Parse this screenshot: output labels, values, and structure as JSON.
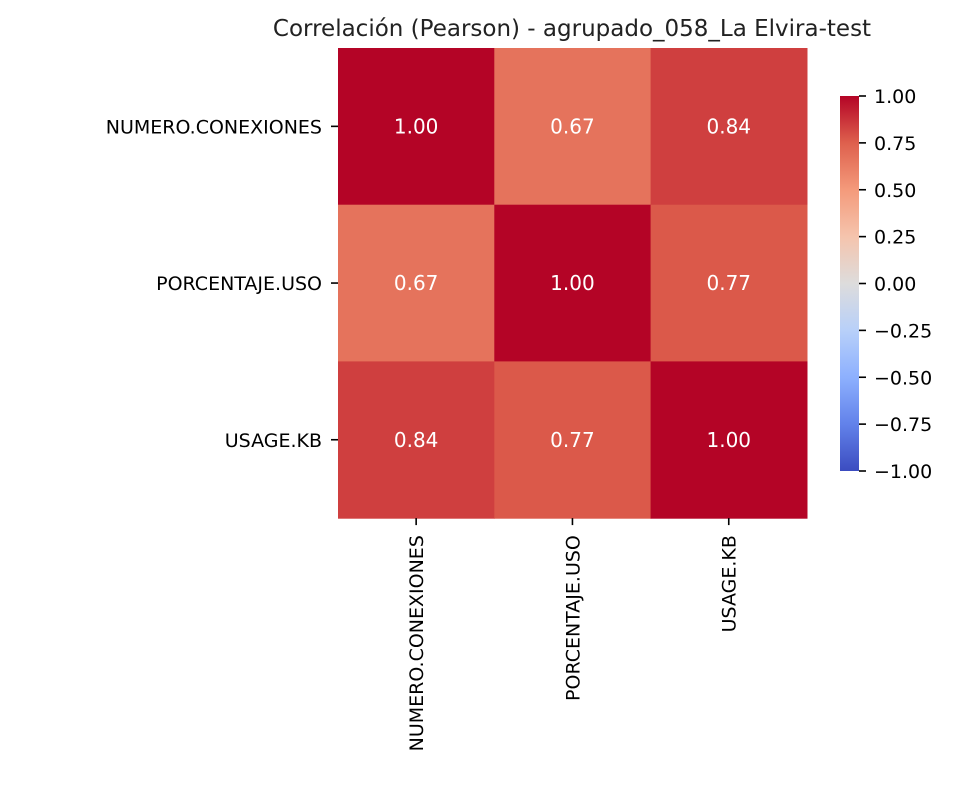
{
  "chart_data": {
    "type": "heatmap",
    "title": "Correlación (Pearson) - agrupado_058_La Elvira-test",
    "x_labels": [
      "NUMERO.CONEXIONES",
      "PORCENTAJE.USO",
      "USAGE.KB"
    ],
    "y_labels": [
      "NUMERO.CONEXIONES",
      "PORCENTAJE.USO",
      "USAGE.KB"
    ],
    "matrix": [
      [
        1.0,
        0.67,
        0.84
      ],
      [
        0.67,
        1.0,
        0.77
      ],
      [
        0.84,
        0.77,
        1.0
      ]
    ],
    "cell_labels": [
      [
        "1.00",
        "0.67",
        "0.84"
      ],
      [
        "0.67",
        "1.00",
        "0.77"
      ],
      [
        "0.84",
        "0.77",
        "1.00"
      ]
    ],
    "colormap": "coolwarm",
    "vmin": -1.0,
    "vmax": 1.0,
    "colorbar_ticks": [
      "1.00",
      "0.75",
      "0.50",
      "0.25",
      "0.00",
      "−0.25",
      "−0.50",
      "−0.75",
      "−1.00"
    ],
    "colorbar_tick_values": [
      1.0,
      0.75,
      0.5,
      0.25,
      0.0,
      -0.25,
      -0.5,
      -0.75,
      -1.0
    ],
    "colormap_stops": [
      "#3b4cc0",
      "#b40426"
    ]
  }
}
